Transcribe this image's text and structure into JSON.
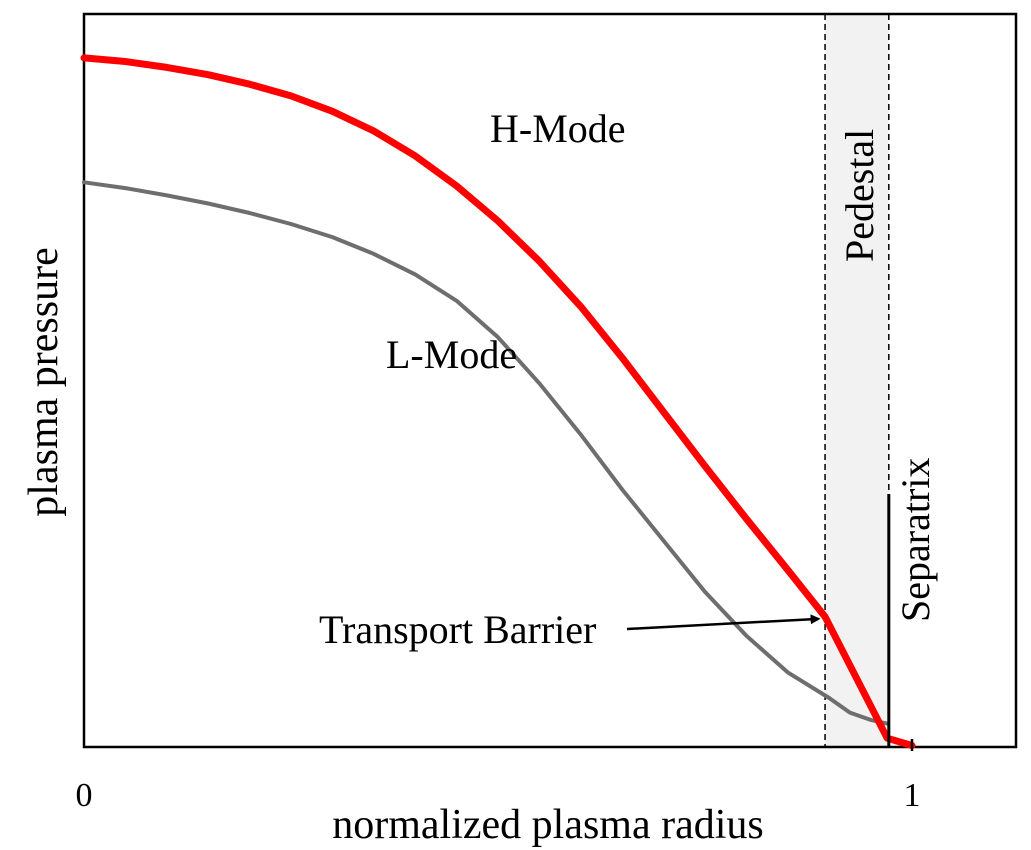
{
  "chart_data": {
    "type": "line",
    "title": "",
    "xlabel": "normalized plasma radius",
    "ylabel": "plasma pressure",
    "xlim": [
      0,
      1.125
    ],
    "ylim": [
      -0.002,
      1.0
    ],
    "x_ticks": [
      {
        "value": 0,
        "label": "0"
      },
      {
        "value": 1,
        "label": "1"
      }
    ],
    "grid": false,
    "series": [
      {
        "name": "H-Mode",
        "color": "#ff0000",
        "x": [
          0,
          0.05,
          0.1,
          0.15,
          0.2,
          0.25,
          0.3,
          0.35,
          0.4,
          0.45,
          0.5,
          0.55,
          0.6,
          0.65,
          0.7,
          0.75,
          0.8,
          0.85,
          0.895,
          0.97,
          1.0
        ],
        "y": [
          0.94,
          0.935,
          0.927,
          0.917,
          0.904,
          0.888,
          0.867,
          0.84,
          0.806,
          0.765,
          0.717,
          0.662,
          0.6,
          0.53,
          0.456,
          0.382,
          0.31,
          0.24,
          0.176,
          0.01,
          0.0
        ]
      },
      {
        "name": "L-Mode",
        "color": "#6e6e6e",
        "x": [
          0,
          0.05,
          0.1,
          0.15,
          0.2,
          0.25,
          0.3,
          0.35,
          0.4,
          0.45,
          0.5,
          0.55,
          0.6,
          0.65,
          0.7,
          0.75,
          0.8,
          0.85,
          0.9,
          0.925,
          0.95,
          0.97
        ],
        "y": [
          0.77,
          0.762,
          0.752,
          0.741,
          0.728,
          0.713,
          0.695,
          0.672,
          0.644,
          0.608,
          0.558,
          0.495,
          0.425,
          0.35,
          0.28,
          0.21,
          0.15,
          0.1,
          0.065,
          0.045,
          0.035,
          0.03
        ]
      }
    ],
    "annotations": {
      "h_mode_label": "H-Mode",
      "l_mode_label": "L-Mode",
      "pedestal_label": "Pedestal",
      "separatrix_label": "Separatrix",
      "transport_barrier_label": "Transport Barrier"
    },
    "pedestal_region": [
      0.895,
      0.972
    ],
    "separatrix_x": 0.972,
    "transport_barrier_arrow_target": {
      "x": 0.892,
      "y": 0.18
    },
    "colors": {
      "h_mode": "#ff0000",
      "l_mode": "#6e6e6e",
      "pedestal_fill": "#f2f2f2",
      "axes": "#000000"
    }
  }
}
